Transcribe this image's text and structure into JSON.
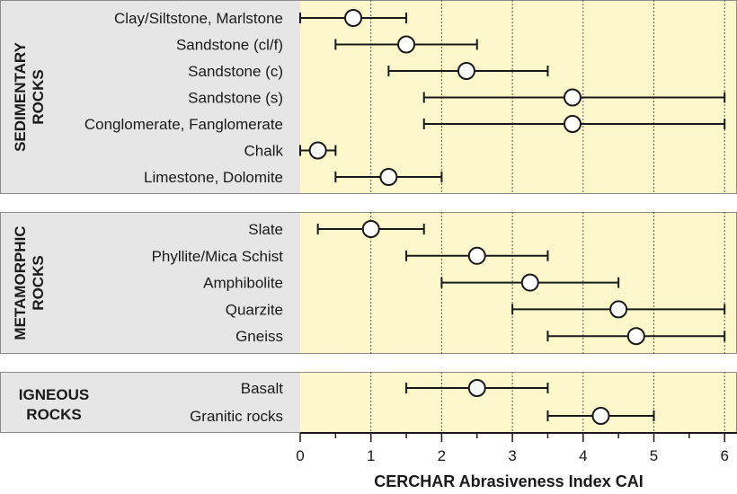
{
  "chart_data": {
    "type": "scatter",
    "xlabel": "CERCHAR Abrasiveness Index CAI",
    "xlim": [
      0,
      6.1
    ],
    "x_ticks": [
      "0",
      "1",
      "2",
      "3",
      "4",
      "5",
      "6"
    ],
    "grid": "vertical dashed at 1, 2, 3, 4, 5, 6",
    "colors": {
      "plot_background": "#fdf8cc",
      "label_background": "#e6e6e6",
      "marker_fill": "#ffffff",
      "ink": "#1a1a1a"
    },
    "groups": [
      {
        "name": "SEDIMENTARY\nROCKS",
        "rows": [
          {
            "label": "Clay/Siltstone, Marlstone",
            "min": 0,
            "max": 1.5,
            "mean": 0.75
          },
          {
            "label": "Sandstone (cl/f)",
            "min": 0.5,
            "max": 2.5,
            "mean": 1.5
          },
          {
            "label": "Sandstone (c)",
            "min": 1.25,
            "max": 3.5,
            "mean": 2.35
          },
          {
            "label": "Sandstone (s)",
            "min": 1.75,
            "max": 6.0,
            "mean": 3.85
          },
          {
            "label": "Conglomerate, Fanglomerate",
            "min": 1.75,
            "max": 6.0,
            "mean": 3.85
          },
          {
            "label": "Chalk",
            "min": 0,
            "max": 0.5,
            "mean": 0.25
          },
          {
            "label": "Limestone, Dolomite",
            "min": 0.5,
            "max": 2.0,
            "mean": 1.25
          }
        ]
      },
      {
        "name": "METAMORPHIC\nROCKS",
        "rows": [
          {
            "label": "Slate",
            "min": 0.25,
            "max": 1.75,
            "mean": 1.0
          },
          {
            "label": "Phyllite/Mica Schist",
            "min": 1.5,
            "max": 3.5,
            "mean": 2.5
          },
          {
            "label": "Amphibolite",
            "min": 2.0,
            "max": 4.5,
            "mean": 3.25
          },
          {
            "label": "Quarzite",
            "min": 3.0,
            "max": 6.0,
            "mean": 4.5
          },
          {
            "label": "Gneiss",
            "min": 3.5,
            "max": 6.0,
            "mean": 4.75
          }
        ]
      },
      {
        "name": "IGNEOUS\nROCKS",
        "rows": [
          {
            "label": "Basalt",
            "min": 1.5,
            "max": 3.5,
            "mean": 2.5
          },
          {
            "label": "Granitic rocks",
            "min": 3.5,
            "max": 5.0,
            "mean": 4.25
          }
        ]
      }
    ]
  }
}
